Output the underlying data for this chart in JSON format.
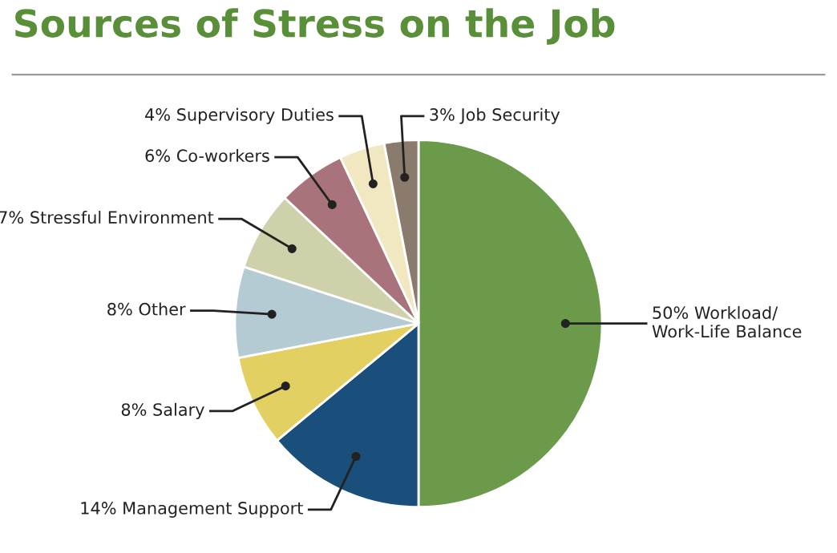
{
  "chart_data": {
    "type": "pie",
    "title": "Sources of Stress on the Job",
    "categories": [
      "Workload/\nWork-Life Balance",
      "Management Support",
      "Salary",
      "Other",
      "Stressful Environment",
      "Co-workers",
      "Supervisory Duties",
      "Job Security"
    ],
    "values": [
      50,
      14,
      8,
      8,
      7,
      6,
      4,
      3
    ],
    "value_labels": [
      "50%",
      "14%",
      "8%",
      "8%",
      "7%",
      "6%",
      "4%",
      "3%"
    ],
    "colors": [
      "#6b9b4a",
      "#1b4f7b",
      "#e3d062",
      "#b5cbd3",
      "#cfd1ab",
      "#a9737c",
      "#f1e8c2",
      "#8b7b6c"
    ]
  }
}
